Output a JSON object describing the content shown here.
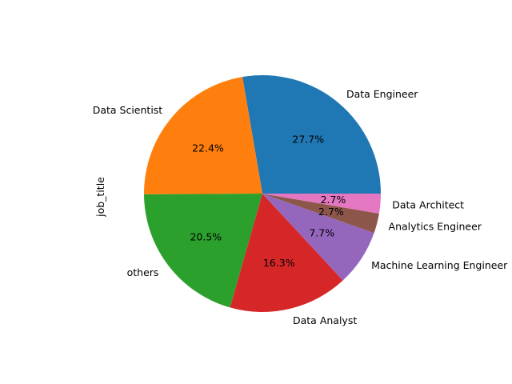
{
  "chart_data": {
    "type": "pie",
    "ylabel": "job_title",
    "slices": [
      {
        "label": "Data Engineer",
        "value": 27.7,
        "pct_label": "27.7%",
        "color": "#1f77b4"
      },
      {
        "label": "Data Scientist",
        "value": 22.4,
        "pct_label": "22.4%",
        "color": "#ff7f0e"
      },
      {
        "label": "others",
        "value": 20.5,
        "pct_label": "20.5%",
        "color": "#2ca02c"
      },
      {
        "label": "Data Analyst",
        "value": 16.3,
        "pct_label": "16.3%",
        "color": "#d62728"
      },
      {
        "label": "Machine Learning Engineer",
        "value": 7.7,
        "pct_label": "7.7%",
        "color": "#9467bd"
      },
      {
        "label": "Analytics Engineer",
        "value": 2.7,
        "pct_label": "2.7%",
        "color": "#8c564b"
      },
      {
        "label": "Data Architect",
        "value": 2.7,
        "pct_label": "2.7%",
        "color": "#e377c2"
      }
    ],
    "start_angle_deg": 0,
    "direction": "counterclockwise"
  }
}
